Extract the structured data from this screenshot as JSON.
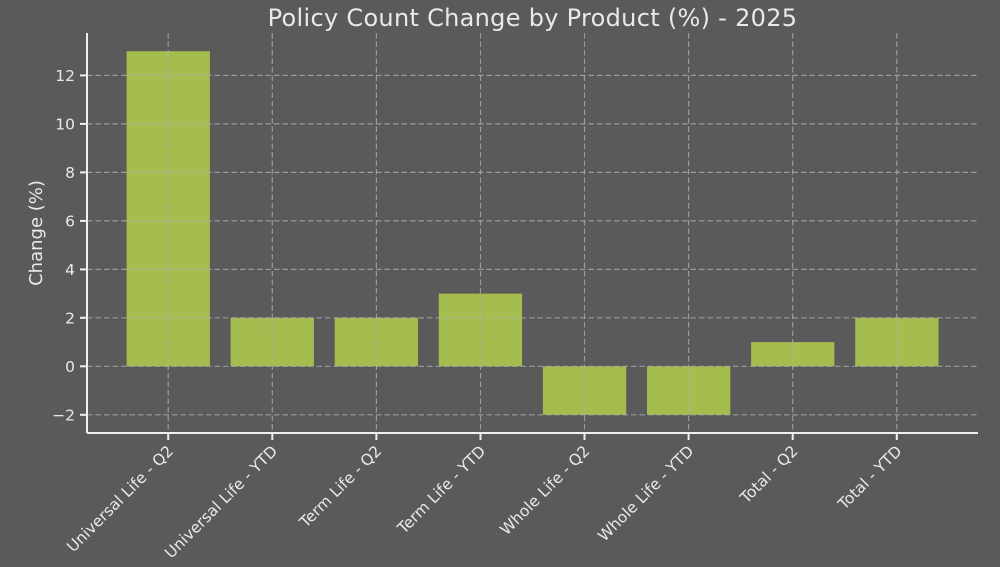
{
  "chart_data": {
    "type": "bar",
    "title": "Policy Count Change by Product (%) - 2025",
    "categories": [
      "Universal Life - Q2",
      "Universal Life - YTD",
      "Term Life - Q2",
      "Term Life - YTD",
      "Whole Life - Q2",
      "Whole Life - YTD",
      "Total - Q2",
      "Total - YTD"
    ],
    "values": [
      13,
      2,
      2,
      3,
      -2,
      -2,
      1,
      2
    ],
    "xlabel": "",
    "ylabel": "Change (%)",
    "yticks": [
      -2,
      0,
      2,
      4,
      6,
      8,
      10,
      12
    ],
    "ylim": [
      -2.75,
      13.75
    ],
    "xlim": [
      -0.78,
      7.78
    ],
    "bar_width": 0.8,
    "grid": true,
    "grid_style": "dashed",
    "grid_on_top": true,
    "tick_label_rotation": 45,
    "legend": "none",
    "colors": {
      "background": "#5a5a5a",
      "bar": "#a4bd4e",
      "grid": "#b0b0b0",
      "axis": "#efefef",
      "text": "#e9e9e9"
    }
  }
}
